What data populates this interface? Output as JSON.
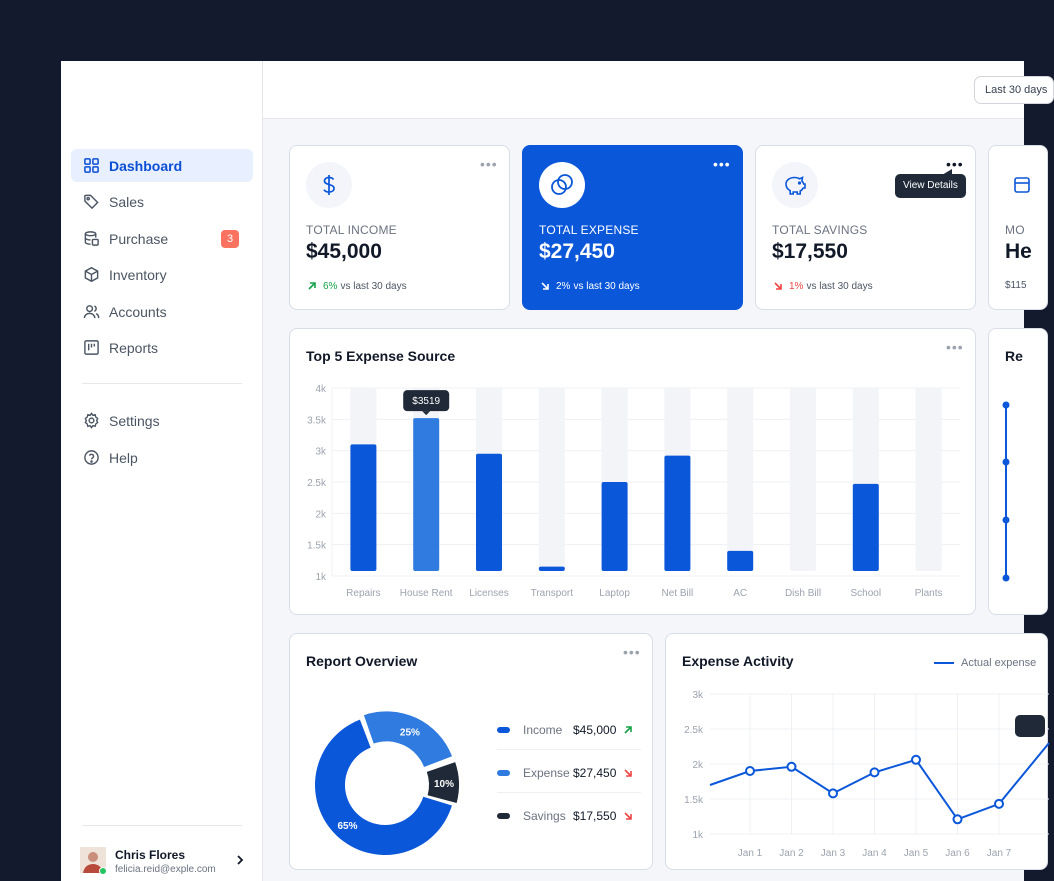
{
  "topbar": {
    "range_label": "Last 30 days"
  },
  "sidebar": {
    "items": [
      {
        "label": "Dashboard",
        "icon": "grid-icon"
      },
      {
        "label": "Sales",
        "icon": "tag-icon"
      },
      {
        "label": "Purchase",
        "icon": "database-icon",
        "badge": "3"
      },
      {
        "label": "Inventory",
        "icon": "cube-icon"
      },
      {
        "label": "Accounts",
        "icon": "users-icon"
      },
      {
        "label": "Reports",
        "icon": "board-icon"
      }
    ],
    "settings_label": "Settings",
    "help_label": "Help",
    "user": {
      "name": "Chris Flores",
      "email": "felicia.reid@exple.com"
    }
  },
  "stats": [
    {
      "label": "TOTAL INCOME",
      "value": "$45,000",
      "trend": "6%",
      "trend_text": "vs last 30 days",
      "direction": "up"
    },
    {
      "label": "TOTAL EXPENSE",
      "value": "$27,450",
      "trend": "2%",
      "trend_text": "vs last 30 days",
      "direction": "down"
    },
    {
      "label": "TOTAL SAVINGS",
      "value": "$17,550",
      "trend": "1%",
      "trend_text": "vs last 30 days",
      "direction": "down"
    },
    {
      "label": "MO",
      "value": "He",
      "trend": "$115",
      "trend_text": ""
    }
  ],
  "tooltips": {
    "view_details": "View Details"
  },
  "expense_source": {
    "title": "Top 5 Expense Source",
    "side_title": "Re",
    "chart_data": {
      "type": "bar",
      "categories": [
        "Repairs",
        "House Rent",
        "Licenses",
        "Transport",
        "Laptop",
        "Net Bill",
        "AC",
        "Dish Bill",
        "School",
        "Plants"
      ],
      "values": [
        3100,
        3519,
        2950,
        1150,
        2500,
        2920,
        1400,
        870,
        2470,
        1080
      ],
      "background_max": 4000,
      "ylim": [
        1000,
        4000
      ],
      "yticks": [
        "1k",
        "1.5k",
        "2k",
        "2.5k",
        "3k",
        "3.5k",
        "4k"
      ],
      "highlight": {
        "category": "House Rent",
        "label": "$3519"
      }
    }
  },
  "report_overview": {
    "title": "Report Overview",
    "chart_data": {
      "type": "pie",
      "slices": [
        {
          "name": "Income",
          "percent": 65,
          "label": "65%"
        },
        {
          "name": "Expense",
          "percent": 25,
          "label": "25%"
        },
        {
          "name": "Savings",
          "percent": 10,
          "label": "10%"
        }
      ]
    },
    "legend": [
      {
        "name": "Income",
        "value": "$45,000",
        "direction": "up",
        "color": "#0b57d9"
      },
      {
        "name": "Expense",
        "value": "$27,450",
        "direction": "down",
        "color": "#2f7be0"
      },
      {
        "name": "Savings",
        "value": "$17,550",
        "direction": "down",
        "color": "#1f2937"
      }
    ]
  },
  "expense_activity": {
    "title": "Expense Activity",
    "legend_label": "Actual expense",
    "chart_data": {
      "type": "line",
      "x": [
        "Jan 1",
        "Jan 2",
        "Jan 3",
        "Jan 4",
        "Jan 5",
        "Jan 6",
        "Jan 7"
      ],
      "series": [
        {
          "name": "Actual expense",
          "values": [
            1900,
            1960,
            1580,
            1880,
            2060,
            1210,
            1430
          ]
        }
      ],
      "ylim": [
        1000,
        3000
      ],
      "yticks": [
        "1k",
        "1.5k",
        "2k",
        "2.5k",
        "3k"
      ]
    }
  },
  "colors": {
    "primary": "#0b57d9",
    "light_blue": "#2f7be0",
    "dark": "#1f2937",
    "up": "#16a34a",
    "down": "#ef4444",
    "badge": "#f97360"
  }
}
